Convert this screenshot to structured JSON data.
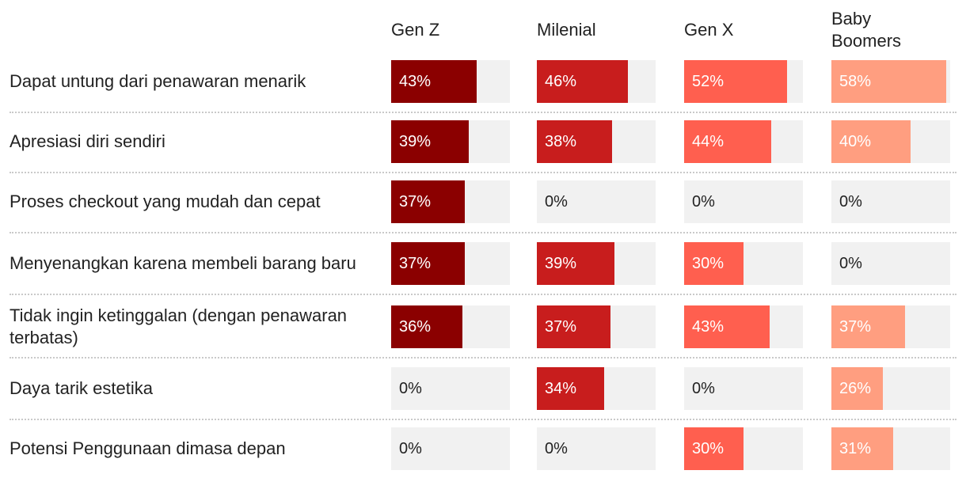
{
  "chart_data": {
    "type": "table",
    "title": "",
    "columns": [
      "Gen Z",
      "Milenial",
      "Gen X",
      "Baby Boomers"
    ],
    "column_colors": [
      "#8b0000",
      "#c81d1d",
      "#ff5f4f",
      "#ff9e80"
    ],
    "value_suffix": "%",
    "xlim": [
      0,
      60
    ],
    "rows": [
      {
        "label": "Dapat untung dari penawaran menarik",
        "values": [
          43,
          46,
          52,
          58
        ]
      },
      {
        "label": "Apresiasi diri sendiri",
        "values": [
          39,
          38,
          44,
          40
        ]
      },
      {
        "label": "Proses checkout yang mudah dan cepat",
        "values": [
          37,
          0,
          0,
          0
        ]
      },
      {
        "label": "Menyenangkan karena membeli barang baru",
        "values": [
          37,
          39,
          30,
          0
        ]
      },
      {
        "label": "Tidak ingin ketinggalan (dengan penawaran terbatas)",
        "values": [
          36,
          37,
          43,
          37
        ]
      },
      {
        "label": "Daya tarik estetika",
        "values": [
          0,
          34,
          0,
          26
        ]
      },
      {
        "label": "Potensi Penggunaan dimasa depan",
        "values": [
          0,
          0,
          30,
          31
        ]
      }
    ]
  }
}
